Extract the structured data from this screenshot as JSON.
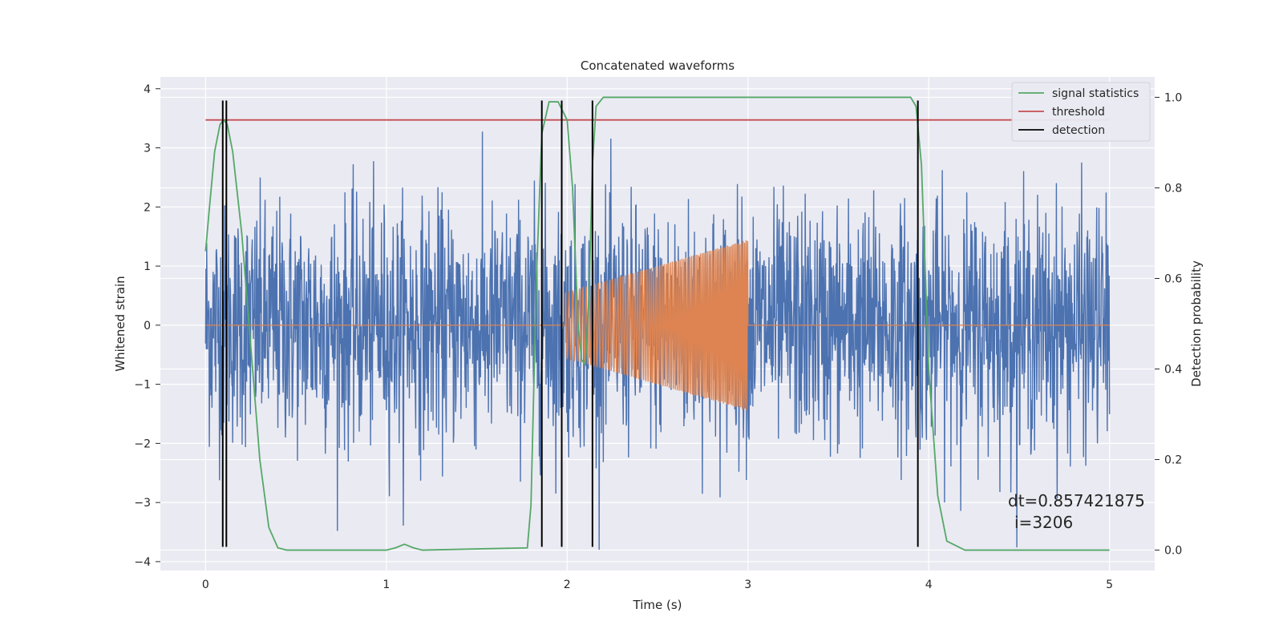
{
  "chart_data": {
    "type": "line",
    "title": "Concatenated waveforms",
    "xlabel": "Time (s)",
    "ylabel": "Whitened strain",
    "y2label": "Detection probability",
    "xlim": [
      -0.25,
      5.25
    ],
    "ylim": [
      -4.15,
      4.2
    ],
    "y2lim": [
      -0.045,
      1.045
    ],
    "x_ticks": [
      0,
      1,
      2,
      3,
      4,
      5
    ],
    "y_ticks": [
      -4,
      -3,
      -2,
      -1,
      0,
      1,
      2,
      3,
      4
    ],
    "y2_ticks": [
      0.0,
      0.2,
      0.4,
      0.6,
      0.8,
      1.0
    ],
    "y2_tick_labels": [
      "0.0",
      "0.2",
      "0.4",
      "0.6",
      "0.8",
      "1.0"
    ],
    "grid": true,
    "legend_position": "top-right",
    "colors": {
      "background": "#eaeaf2",
      "grid": "#ffffff",
      "strain": "#4c72b0",
      "waveform": "#dd8452",
      "signal_statistics": "#55a868",
      "threshold": "#c44e52",
      "detection": "#000000"
    },
    "series": [
      {
        "name": "",
        "axis": "left",
        "kind": "noise",
        "x_range": [
          0,
          5
        ],
        "amplitude_typical": 1.0,
        "peak_max": 3.8,
        "peak_min": -3.8
      },
      {
        "name": "",
        "axis": "left",
        "kind": "chirp",
        "x_range": [
          0,
          5
        ],
        "active_range": [
          1.99,
          3.0
        ],
        "amplitude_start": 0.55,
        "amplitude_end": 1.45
      },
      {
        "name": "signal statistics",
        "axis": "right",
        "x": [
          0,
          0.02,
          0.05,
          0.08,
          0.1,
          0.12,
          0.15,
          0.2,
          0.25,
          0.3,
          0.35,
          0.4,
          0.45,
          1.0,
          1.05,
          1.1,
          1.15,
          1.2,
          1.78,
          1.8,
          1.83,
          1.86,
          1.9,
          1.95,
          2.0,
          2.03,
          2.06,
          2.08,
          2.1,
          2.12,
          2.14,
          2.16,
          2.2,
          2.3,
          3.9,
          3.93,
          3.96,
          4.0,
          4.05,
          4.1,
          4.2,
          5.0
        ],
        "y": [
          0.66,
          0.75,
          0.88,
          0.94,
          0.95,
          0.94,
          0.88,
          0.7,
          0.45,
          0.2,
          0.05,
          0.005,
          0.0,
          0.0,
          0.005,
          0.013,
          0.005,
          0.0,
          0.005,
          0.1,
          0.6,
          0.92,
          0.99,
          0.99,
          0.95,
          0.8,
          0.5,
          0.42,
          0.41,
          0.55,
          0.85,
          0.98,
          1.0,
          1.0,
          1.0,
          0.98,
          0.85,
          0.4,
          0.12,
          0.02,
          0.0,
          0.0
        ]
      },
      {
        "name": "threshold",
        "axis": "right",
        "x": [
          0,
          5
        ],
        "y": [
          0.95,
          0.95
        ]
      },
      {
        "name": "detection",
        "axis": "left",
        "kind": "vlines",
        "x": [
          0.095,
          0.115,
          1.86,
          1.97,
          2.14,
          3.94
        ],
        "y_range": [
          -3.75,
          3.8
        ]
      }
    ],
    "annotations": [
      "dt=0.857421875",
      "i=3206"
    ]
  }
}
